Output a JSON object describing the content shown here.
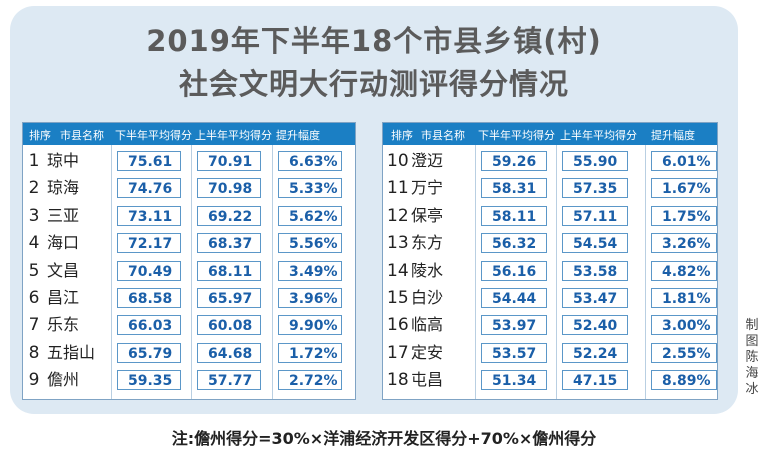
{
  "title": {
    "line1": "2019年下半年18个市县乡镇(村)",
    "line2": "社会文明大行动测评得分情况"
  },
  "columns": {
    "rank": "排序",
    "name": "市县名称",
    "h2": "下半年平均得分",
    "h1": "上半年平均得分",
    "improve": "提升幅度"
  },
  "left": [
    {
      "rank": "1",
      "name": "琼中",
      "h2": "75.61",
      "h1": "70.91",
      "improve": "6.63%"
    },
    {
      "rank": "2",
      "name": "琼海",
      "h2": "74.76",
      "h1": "70.98",
      "improve": "5.33%"
    },
    {
      "rank": "3",
      "name": "三亚",
      "h2": "73.11",
      "h1": "69.22",
      "improve": "5.62%"
    },
    {
      "rank": "4",
      "name": "海口",
      "h2": "72.17",
      "h1": "68.37",
      "improve": "5.56%"
    },
    {
      "rank": "5",
      "name": "文昌",
      "h2": "70.49",
      "h1": "68.11",
      "improve": "3.49%"
    },
    {
      "rank": "6",
      "name": "昌江",
      "h2": "68.58",
      "h1": "65.97",
      "improve": "3.96%"
    },
    {
      "rank": "7",
      "name": "乐东",
      "h2": "66.03",
      "h1": "60.08",
      "improve": "9.90%"
    },
    {
      "rank": "8",
      "name": "五指山",
      "h2": "65.79",
      "h1": "64.68",
      "improve": "1.72%"
    },
    {
      "rank": "9",
      "name": "儋州",
      "h2": "59.35",
      "h1": "57.77",
      "improve": "2.72%"
    }
  ],
  "right": [
    {
      "rank": "10",
      "name": "澄迈",
      "h2": "59.26",
      "h1": "55.90",
      "improve": "6.01%"
    },
    {
      "rank": "11",
      "name": "万宁",
      "h2": "58.31",
      "h1": "57.35",
      "improve": "1.67%"
    },
    {
      "rank": "12",
      "name": "保亭",
      "h2": "58.11",
      "h1": "57.11",
      "improve": "1.75%"
    },
    {
      "rank": "13",
      "name": "东方",
      "h2": "56.32",
      "h1": "54.54",
      "improve": "3.26%"
    },
    {
      "rank": "14",
      "name": "陵水",
      "h2": "56.16",
      "h1": "53.58",
      "improve": "4.82%"
    },
    {
      "rank": "15",
      "name": "白沙",
      "h2": "54.44",
      "h1": "53.47",
      "improve": "1.81%"
    },
    {
      "rank": "16",
      "name": "临高",
      "h2": "53.97",
      "h1": "52.40",
      "improve": "3.00%"
    },
    {
      "rank": "17",
      "name": "定安",
      "h2": "53.57",
      "h1": "52.24",
      "improve": "2.55%"
    },
    {
      "rank": "18",
      "name": "屯昌",
      "h2": "51.34",
      "h1": "47.15",
      "improve": "8.89%"
    }
  ],
  "credit": "制图陈海冰",
  "note": "注:儋州得分=30%×洋浦经济开发区得分+70%×儋州得分",
  "colors": {
    "header": "#1b7fc4",
    "panel": "#dde9f3",
    "value_text": "#1b5fa8",
    "title_text": "#5b5b5b"
  }
}
